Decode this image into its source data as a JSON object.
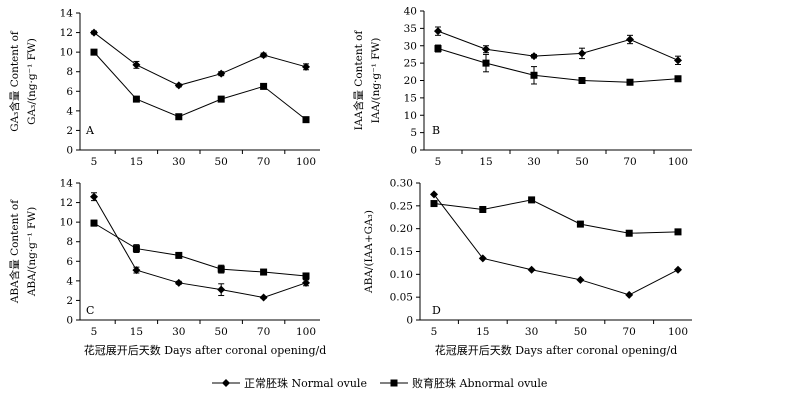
{
  "legend": {
    "normal": "正常胚珠 Normal ovule",
    "abnormal": "败育胚珠 Abnormal ovule"
  },
  "chart_data": [
    {
      "panel": "A",
      "type": "line",
      "ylabel_line1": "GA₃含量 Content of",
      "ylabel_line2": "GA₃/(ng·g⁻¹ FW)",
      "xlabel": "",
      "categories": [
        "5",
        "15",
        "30",
        "50",
        "70",
        "100"
      ],
      "ylim": [
        0,
        14
      ],
      "yticks": [
        0,
        2,
        4,
        6,
        8,
        10,
        12,
        14
      ],
      "ytick_labels": [
        "0",
        "2",
        "4",
        "6",
        "8",
        "10",
        "12",
        "14"
      ],
      "series": [
        {
          "name": "正常胚珠 Normal ovule",
          "marker": "diamond",
          "values": [
            12.0,
            8.7,
            6.6,
            7.8,
            9.7,
            8.5
          ],
          "errors": [
            0.15,
            0.35,
            0.15,
            0.2,
            0.2,
            0.3
          ]
        },
        {
          "name": "败育胚珠 Abnormal ovule",
          "marker": "square",
          "values": [
            10.0,
            5.2,
            3.4,
            5.2,
            6.5,
            3.1
          ],
          "errors": [
            0.15,
            0.15,
            0.15,
            0.15,
            0.15,
            0.15
          ]
        }
      ]
    },
    {
      "panel": "B",
      "type": "line",
      "ylabel_line1": "IAA含量 Content of",
      "ylabel_line2": "IAA/(ng·g⁻¹ FW)",
      "xlabel": "",
      "categories": [
        "5",
        "15",
        "30",
        "50",
        "70",
        "100"
      ],
      "ylim": [
        0,
        40
      ],
      "yticks": [
        0,
        5,
        10,
        15,
        20,
        25,
        30,
        35,
        40
      ],
      "ytick_labels": [
        "0",
        "5",
        "10",
        "15",
        "20",
        "25",
        "30",
        "35",
        "40"
      ],
      "series": [
        {
          "name": "正常胚珠 Normal ovule",
          "marker": "diamond",
          "values": [
            34.2,
            29.0,
            27.0,
            27.8,
            31.8,
            25.8
          ],
          "errors": [
            1.2,
            1.0,
            0.5,
            1.5,
            1.2,
            1.2
          ]
        },
        {
          "name": "败育胚珠 Abnormal ovule",
          "marker": "square",
          "values": [
            29.2,
            25.0,
            21.5,
            20.0,
            19.5,
            20.5
          ],
          "errors": [
            1.0,
            2.5,
            2.5,
            0.5,
            0.5,
            0.8
          ]
        }
      ]
    },
    {
      "panel": "C",
      "type": "line",
      "ylabel_line1": "ABA含量 Content of",
      "ylabel_line2": "ABA/(ng·g⁻¹ FW)",
      "xlabel": "花冠展开后天数 Days after coronal opening/d",
      "categories": [
        "5",
        "15",
        "30",
        "50",
        "70",
        "100"
      ],
      "ylim": [
        0,
        14
      ],
      "yticks": [
        0,
        2,
        4,
        6,
        8,
        10,
        12,
        14
      ],
      "ytick_labels": [
        "0",
        "2",
        "4",
        "6",
        "8",
        "10",
        "12",
        "14"
      ],
      "series": [
        {
          "name": "正常胚珠 Normal ovule",
          "marker": "diamond",
          "values": [
            12.6,
            5.1,
            3.8,
            3.1,
            2.3,
            3.8
          ],
          "errors": [
            0.4,
            0.3,
            0.15,
            0.6,
            0.1,
            0.3
          ]
        },
        {
          "name": "败育胚珠 Abnormal ovule",
          "marker": "square",
          "values": [
            9.9,
            7.3,
            6.6,
            5.2,
            4.9,
            4.5
          ],
          "errors": [
            0.3,
            0.4,
            0.2,
            0.4,
            0.15,
            0.15
          ]
        }
      ]
    },
    {
      "panel": "D",
      "type": "line",
      "ylabel_line1": "ABA/(IAA+GA₃)",
      "ylabel_line2": "",
      "xlabel": "花冠展开后天数 Days after coronal opening/d",
      "categories": [
        "5",
        "15",
        "30",
        "50",
        "70",
        "100"
      ],
      "ylim": [
        0,
        0.3
      ],
      "yticks": [
        0,
        0.05,
        0.1,
        0.15,
        0.2,
        0.25,
        0.3
      ],
      "ytick_labels": [
        "0",
        "0.05",
        "0.10",
        "0.15",
        "0.20",
        "0.25",
        "0.30"
      ],
      "series": [
        {
          "name": "正常胚珠 Normal ovule",
          "marker": "diamond",
          "values": [
            0.275,
            0.135,
            0.11,
            0.088,
            0.055,
            0.11
          ],
          "errors": [
            0,
            0,
            0,
            0,
            0,
            0
          ]
        },
        {
          "name": "败育胚珠 Abnormal ovule",
          "marker": "square",
          "values": [
            0.255,
            0.242,
            0.263,
            0.21,
            0.19,
            0.193
          ],
          "errors": [
            0,
            0,
            0,
            0,
            0,
            0
          ]
        }
      ]
    }
  ]
}
